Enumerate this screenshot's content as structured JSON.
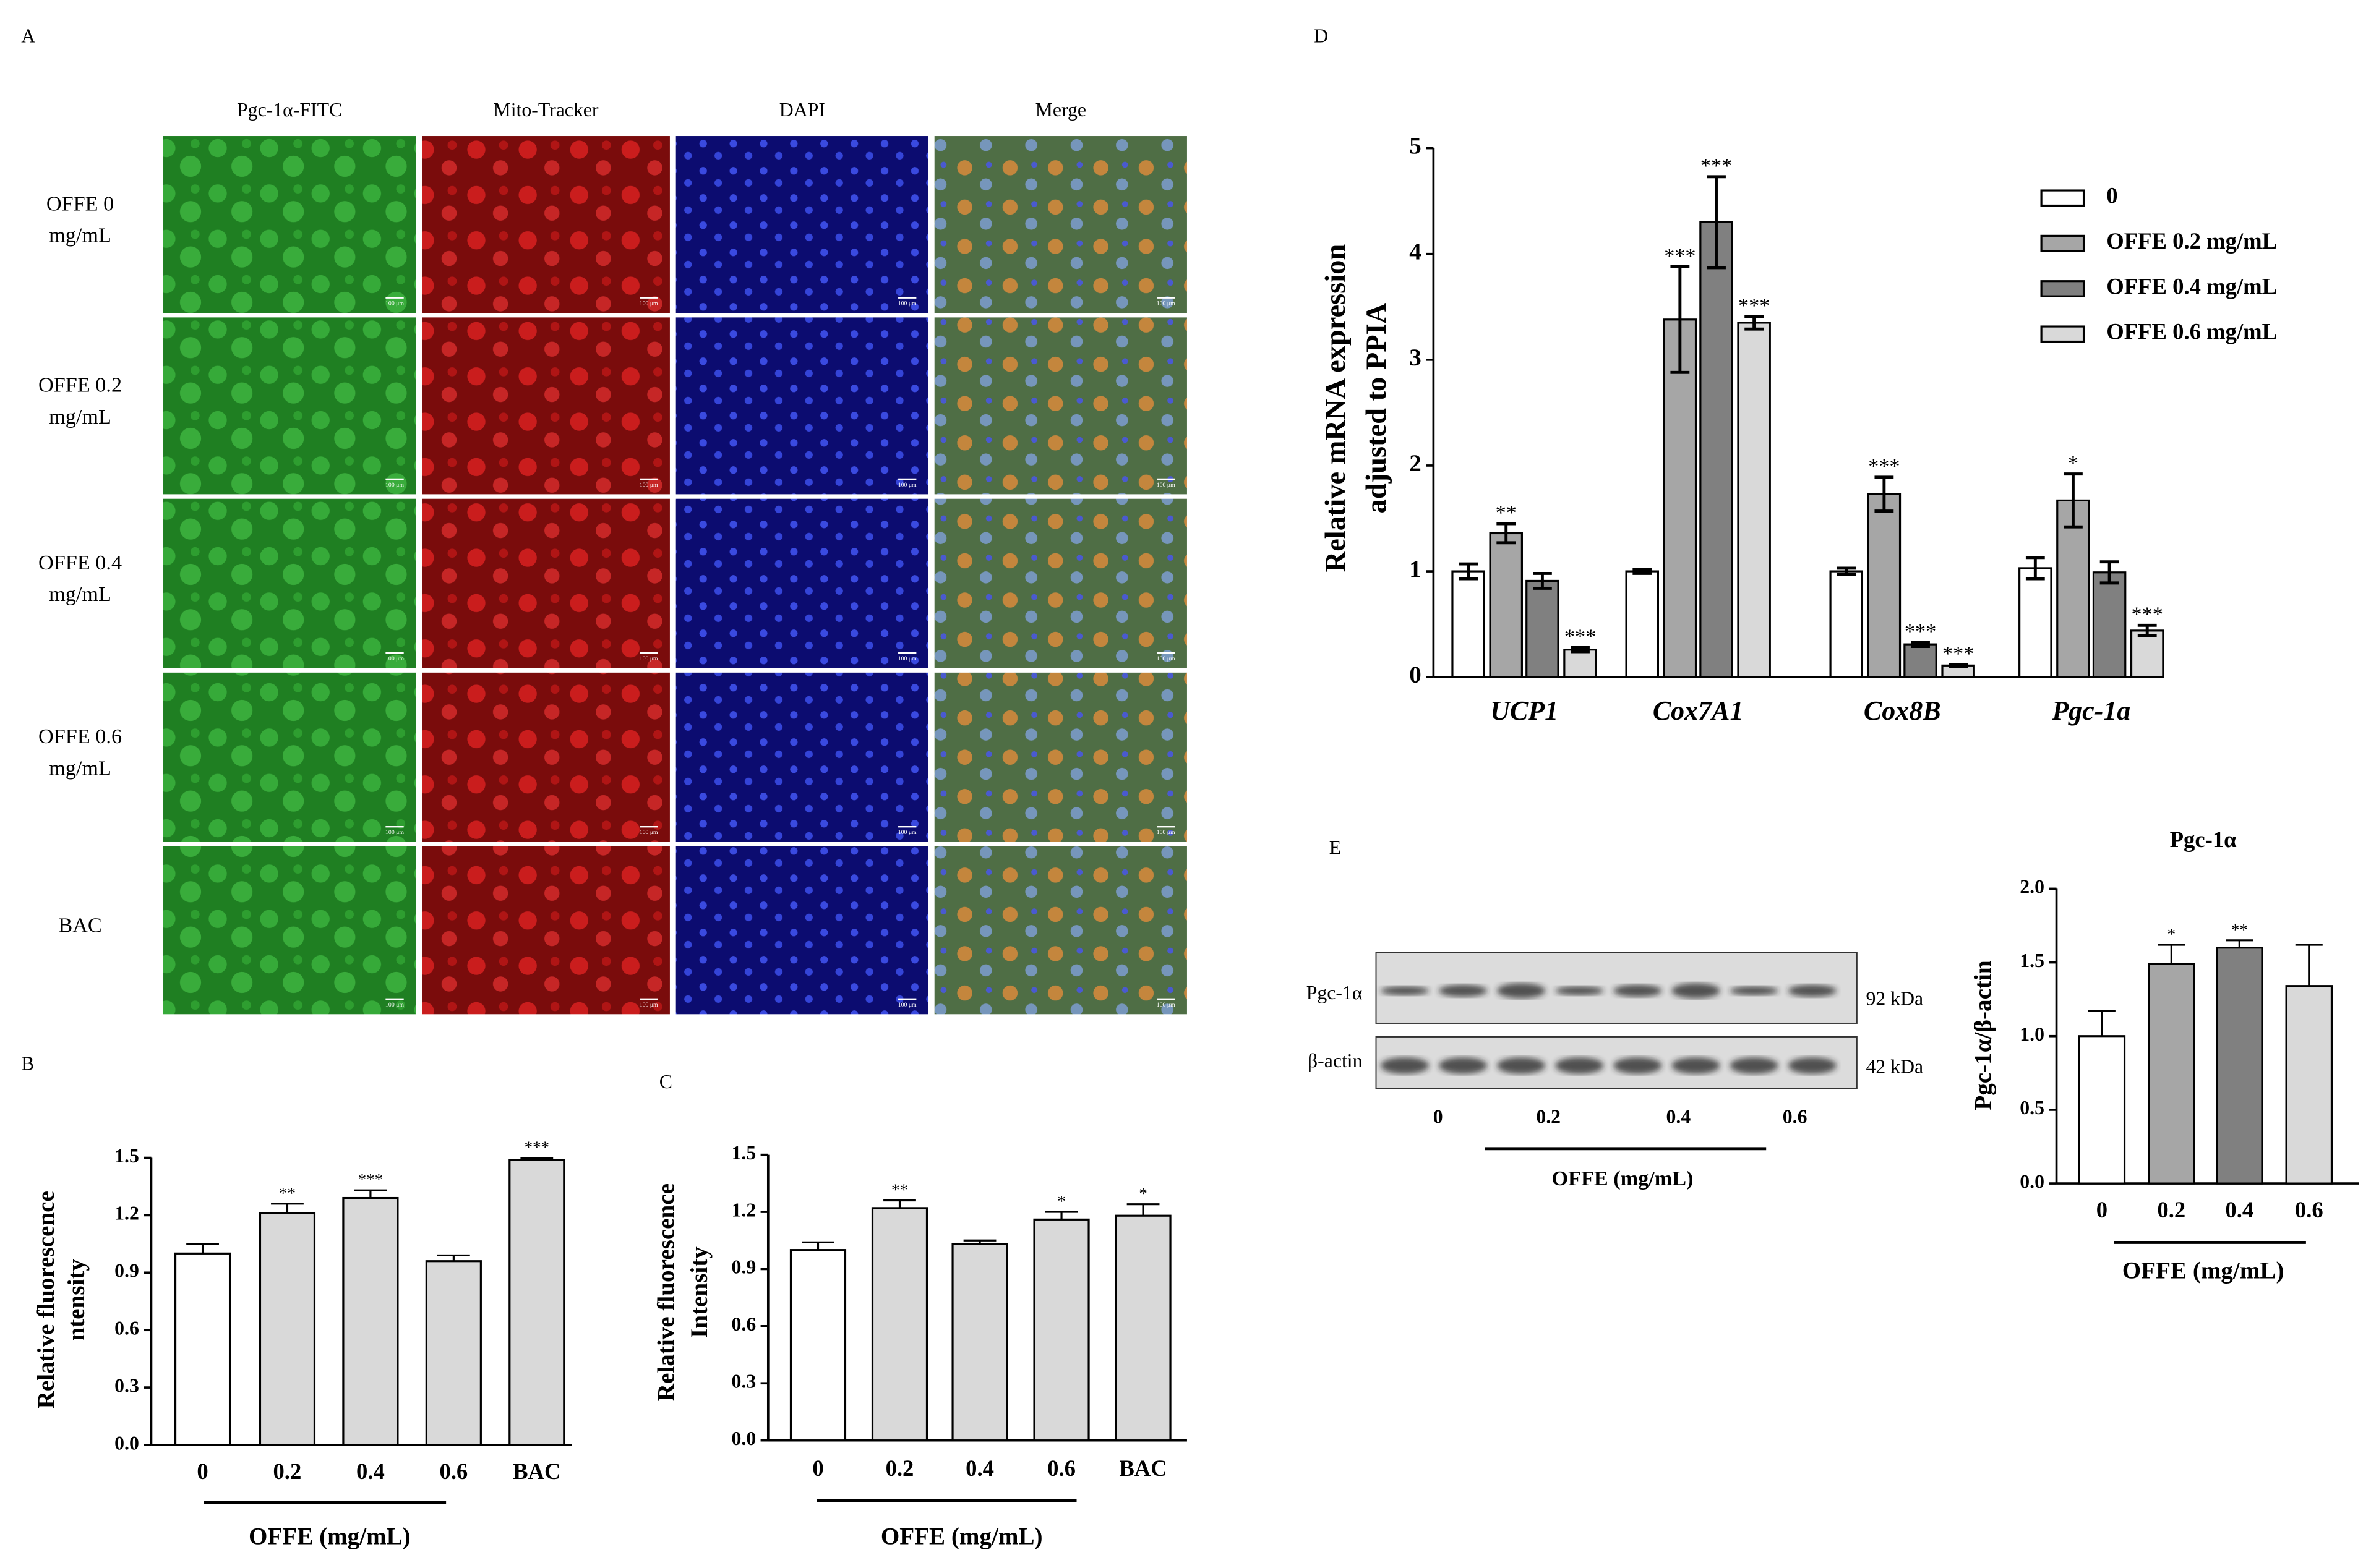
{
  "panel_a": {
    "label": "A",
    "columns": [
      "Pgc-1α-FITC",
      "Mito-Tracker",
      "DAPI",
      "Merge"
    ],
    "rows": [
      [
        "OFFE 0",
        "mg/mL"
      ],
      [
        "OFFE 0.2",
        "mg/mL"
      ],
      [
        "OFFE 0.4",
        "mg/mL"
      ],
      [
        "OFFE 0.6",
        "mg/mL"
      ],
      [
        "BAC"
      ]
    ],
    "scale_bar": "100 μm"
  },
  "blot": {
    "label": "E",
    "bands": [
      {
        "name": "Pgc-1α",
        "size": "92 kDa"
      },
      {
        "name": "β-actin",
        "size": "42 kDa"
      }
    ],
    "lanes": [
      "0",
      "0.2",
      "0.4",
      "0.6"
    ],
    "xlabel": "OFFE (mg/mL)"
  },
  "chart_data": [
    {
      "type": "bar",
      "panel": "B",
      "categories": [
        "0",
        "0.2",
        "0.4",
        "0.6",
        "BAC"
      ],
      "values": [
        1.0,
        1.21,
        1.29,
        0.96,
        1.49
      ],
      "errors": [
        0.05,
        0.05,
        0.04,
        0.03,
        0.01
      ],
      "significance": [
        null,
        "**",
        "***",
        null,
        "***"
      ],
      "colors": [
        "#ffffff",
        "#d9d9d9",
        "#d9d9d9",
        "#d9d9d9",
        "#d9d9d9"
      ],
      "error_direction": "up",
      "xlabel": "OFFE (mg/mL)",
      "ylabel": [
        "Relative fluorescence",
        "ntensity"
      ],
      "ylim": [
        0,
        1.5
      ],
      "yticks": [
        {
          "value": 0,
          "label": "0.0"
        },
        0.3,
        0.6,
        0.9,
        1.2,
        1.5
      ]
    },
    {
      "type": "bar",
      "panel": "C",
      "categories": [
        "0",
        "0.2",
        "0.4",
        "0.6",
        "BAC"
      ],
      "values": [
        1.0,
        1.22,
        1.03,
        1.16,
        1.18
      ],
      "errors": [
        0.04,
        0.04,
        0.02,
        0.04,
        0.06
      ],
      "significance": [
        null,
        "**",
        null,
        "*",
        "*"
      ],
      "colors": [
        "#ffffff",
        "#d9d9d9",
        "#d9d9d9",
        "#d9d9d9",
        "#d9d9d9"
      ],
      "error_direction": "up",
      "xlabel": "OFFE (mg/mL)",
      "ylabel": [
        "Relative fluorescence",
        "Intensity"
      ],
      "ylim": [
        0,
        1.5
      ],
      "yticks": [
        {
          "value": 0,
          "label": "0.0"
        },
        0.3,
        0.6,
        0.9,
        1.2,
        1.5
      ]
    },
    {
      "type": "bar",
      "panel": "D",
      "categories": [
        "UCP1",
        "Cox7A1",
        "Cox8B",
        "Pgc-1a"
      ],
      "series": [
        {
          "name": "0",
          "color": "#ffffff",
          "values": [
            1.0,
            1.0,
            1.0,
            1.03
          ],
          "errors": [
            0.07,
            0.02,
            0.03,
            0.1
          ],
          "significance": [
            null,
            null,
            null,
            null
          ]
        },
        {
          "name": "OFFE 0.2 mg/mL",
          "color": "#a6a6a6",
          "values": [
            1.36,
            3.38,
            1.73,
            1.67
          ],
          "errors": [
            0.09,
            0.5,
            0.16,
            0.25
          ],
          "significance": [
            "**",
            "***",
            "***",
            "*"
          ]
        },
        {
          "name": "OFFE 0.4 mg/mL",
          "color": "#808080",
          "values": [
            0.91,
            4.3,
            0.31,
            0.99
          ],
          "errors": [
            0.07,
            0.43,
            0.02,
            0.1
          ],
          "significance": [
            null,
            "***",
            "***",
            null
          ]
        },
        {
          "name": "OFFE 0.6 mg/mL",
          "color": "#d9d9d9",
          "values": [
            0.26,
            3.35,
            0.11,
            0.44
          ],
          "errors": [
            0.02,
            0.06,
            0.01,
            0.05
          ],
          "significance": [
            "***",
            "***",
            "***",
            "***"
          ]
        }
      ],
      "error_direction": "both",
      "legend": "upper right",
      "ylabel": [
        "Relative mRNA expression",
        "adjusted to PPIA"
      ],
      "ylim": [
        0,
        5
      ],
      "yticks": [
        0,
        1,
        2,
        3,
        4,
        5
      ]
    },
    {
      "type": "bar",
      "panel": null,
      "title": "Pgc-1α",
      "categories": [
        "0",
        "0.2",
        "0.4",
        "0.6"
      ],
      "values": [
        1.0,
        1.49,
        1.6,
        1.34
      ],
      "errors": [
        0.17,
        0.13,
        0.05,
        0.28
      ],
      "significance": [
        null,
        "*",
        "**",
        null
      ],
      "colors": [
        "#ffffff",
        "#a6a6a6",
        "#808080",
        "#d9d9d9"
      ],
      "error_direction": "up",
      "xlabel": "OFFE (mg/mL)",
      "ylabel": [
        "Pgc-1α/β-actin"
      ],
      "ylim": [
        0,
        2
      ],
      "yticks": [
        {
          "value": 0,
          "label": "0.0"
        },
        0.5,
        {
          "value": 1,
          "label": "1.0"
        },
        1.5,
        {
          "value": 2,
          "label": "2.0"
        }
      ]
    }
  ]
}
